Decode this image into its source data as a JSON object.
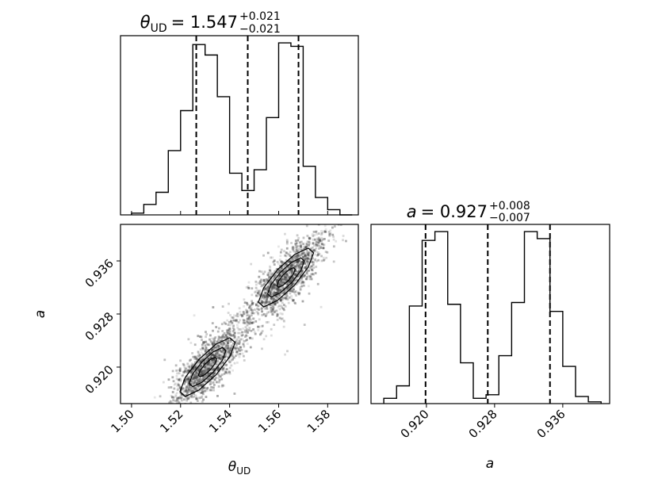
{
  "chart_data": [
    {
      "type": "histogram",
      "parameter": "theta_UD",
      "title": {
        "symbol": "θ",
        "subscript": "UD",
        "value": "= 1.547",
        "upper": "+0.021",
        "lower": "−0.021"
      },
      "xlim": [
        1.4955,
        1.5925
      ],
      "bin_edges": [
        1.5,
        1.505,
        1.51,
        1.515,
        1.52,
        1.525,
        1.53,
        1.535,
        1.54,
        1.545,
        1.55,
        1.555,
        1.56,
        1.565,
        1.57,
        1.575,
        1.58,
        1.585,
        1.59
      ],
      "counts": [
        0.01,
        0.06,
        0.13,
        0.37,
        0.6,
        0.98,
        0.92,
        0.68,
        0.24,
        0.14,
        0.26,
        0.56,
        0.99,
        0.97,
        0.28,
        0.1,
        0.03,
        0.0
      ],
      "quantiles": [
        1.5264,
        1.5474,
        1.5681
      ]
    },
    {
      "type": "scatter-density",
      "xlabel": {
        "symbol": "θ",
        "subscript": "UD"
      },
      "ylabel": "a",
      "xlim": [
        1.4955,
        1.5925
      ],
      "ylim": [
        0.9145,
        0.9415
      ],
      "xticks": [
        "1.50",
        "1.52",
        "1.54",
        "1.56",
        "1.58"
      ],
      "xtick_values": [
        1.5,
        1.52,
        1.54,
        1.56,
        1.58
      ],
      "yticks": [
        "0.920",
        "0.928",
        "0.936"
      ],
      "ytick_values": [
        0.92,
        0.928,
        0.936
      ],
      "clusters": [
        {
          "center_x": 1.531,
          "center_y": 0.92,
          "spread_x": 0.0075,
          "spread_y": 0.0018,
          "slope": 0.33
        },
        {
          "center_x": 1.563,
          "center_y": 0.9335,
          "spread_x": 0.0075,
          "spread_y": 0.0018,
          "slope": 0.33
        }
      ],
      "colors": {
        "points": "#3d3d3d",
        "fill_outer": "#ececec",
        "fill_mid": "#a8a8a8",
        "fill_inner": "#5a5a5a"
      }
    },
    {
      "type": "histogram",
      "parameter": "a",
      "title": {
        "symbol": "a",
        "value": "= 0.927",
        "upper": "+0.008",
        "lower": "−0.007"
      },
      "xlabel": "a",
      "xlim": [
        0.9135,
        0.9415
      ],
      "xticks": [
        "0.920",
        "0.928",
        "0.936"
      ],
      "xtick_values": [
        0.92,
        0.928,
        0.936
      ],
      "bin_edges": [
        0.915,
        0.9165,
        0.918,
        0.9195,
        0.921,
        0.9225,
        0.924,
        0.9255,
        0.927,
        0.9285,
        0.93,
        0.9315,
        0.933,
        0.9345,
        0.936,
        0.9375,
        0.939,
        0.9405
      ],
      "counts": [
        0.03,
        0.1,
        0.55,
        0.92,
        0.97,
        0.56,
        0.23,
        0.03,
        0.05,
        0.27,
        0.57,
        0.97,
        0.93,
        0.52,
        0.21,
        0.04,
        0.01
      ],
      "quantiles": [
        0.9199,
        0.9272,
        0.9345
      ]
    }
  ]
}
